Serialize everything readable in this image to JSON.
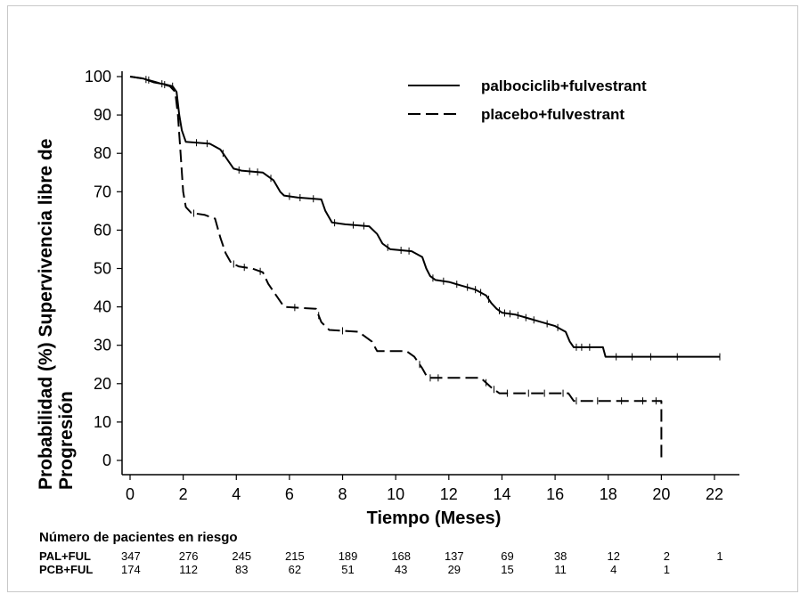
{
  "chart_data": {
    "type": "line",
    "ylabel_lines": [
      "Probabilidad (%) Supervivencia libre de",
      "Progresión"
    ],
    "xlabel": "Tiempo (Meses)",
    "xlim": [
      0,
      22
    ],
    "ylim": [
      0,
      100
    ],
    "x_ticks": [
      "0",
      "2",
      "4",
      "6",
      "8",
      "10",
      "12",
      "14",
      "16",
      "18",
      "20",
      "22"
    ],
    "y_ticks": [
      "0",
      "10",
      "20",
      "30",
      "40",
      "50",
      "60",
      "70",
      "80",
      "90",
      "100"
    ],
    "legend_position": "top-right",
    "series": [
      {
        "name": "palbociclib+fulvestrant",
        "style": "solid",
        "points": [
          [
            0,
            100
          ],
          [
            0.5,
            99.5
          ],
          [
            0.9,
            98.5
          ],
          [
            1.3,
            98
          ],
          [
            1.6,
            97.5
          ],
          [
            1.75,
            96
          ],
          [
            1.85,
            90
          ],
          [
            1.95,
            86
          ],
          [
            2.1,
            83
          ],
          [
            3.0,
            82.5
          ],
          [
            3.4,
            81
          ],
          [
            3.7,
            78
          ],
          [
            3.9,
            76
          ],
          [
            4.2,
            75.5
          ],
          [
            5.0,
            75
          ],
          [
            5.4,
            73
          ],
          [
            5.65,
            70
          ],
          [
            5.8,
            69
          ],
          [
            6.3,
            68.5
          ],
          [
            7.2,
            68
          ],
          [
            7.35,
            65
          ],
          [
            7.6,
            62
          ],
          [
            8.1,
            61.5
          ],
          [
            9.0,
            61
          ],
          [
            9.3,
            59
          ],
          [
            9.5,
            56.5
          ],
          [
            9.8,
            55
          ],
          [
            10.6,
            54.5
          ],
          [
            11.0,
            53
          ],
          [
            11.15,
            50
          ],
          [
            11.3,
            48
          ],
          [
            11.5,
            47
          ],
          [
            12.0,
            46.5
          ],
          [
            12.5,
            45.5
          ],
          [
            13.0,
            44.5
          ],
          [
            13.4,
            43
          ],
          [
            13.6,
            41
          ],
          [
            13.8,
            39.5
          ],
          [
            14.0,
            38.5
          ],
          [
            14.5,
            38
          ],
          [
            15.0,
            37
          ],
          [
            15.5,
            36
          ],
          [
            16.0,
            35
          ],
          [
            16.4,
            33.5
          ],
          [
            16.55,
            31
          ],
          [
            16.7,
            29.5
          ],
          [
            17.8,
            29.5
          ],
          [
            17.9,
            27
          ],
          [
            22.2,
            27
          ]
        ],
        "censor_x": [
          0.6,
          1.2,
          1.6,
          2.5,
          2.9,
          3.5,
          4.1,
          4.5,
          4.8,
          5.3,
          6.0,
          6.4,
          6.9,
          7.7,
          8.4,
          8.8,
          9.7,
          10.2,
          10.5,
          11.4,
          11.8,
          12.3,
          12.7,
          13.0,
          13.2,
          13.5,
          13.9,
          14.1,
          14.3,
          14.6,
          14.9,
          15.2,
          15.7,
          16.1,
          16.8,
          17.0,
          17.3,
          18.3,
          18.9,
          19.6,
          20.6,
          22.2
        ]
      },
      {
        "name": "placebo+fulvestrant",
        "style": "dashed",
        "points": [
          [
            0,
            100
          ],
          [
            0.5,
            99.5
          ],
          [
            1.0,
            98.5
          ],
          [
            1.5,
            97.5
          ],
          [
            1.7,
            96
          ],
          [
            1.8,
            90
          ],
          [
            1.9,
            80
          ],
          [
            2.0,
            70
          ],
          [
            2.1,
            66
          ],
          [
            2.3,
            64.5
          ],
          [
            2.8,
            64
          ],
          [
            3.2,
            63
          ],
          [
            3.4,
            58
          ],
          [
            3.6,
            54
          ],
          [
            3.8,
            51.5
          ],
          [
            4.1,
            50.5
          ],
          [
            4.6,
            50
          ],
          [
            5.0,
            49
          ],
          [
            5.2,
            46
          ],
          [
            5.5,
            43
          ],
          [
            5.8,
            40
          ],
          [
            7.0,
            39.5
          ],
          [
            7.2,
            36
          ],
          [
            7.5,
            34
          ],
          [
            8.6,
            33.5
          ],
          [
            9.1,
            31
          ],
          [
            9.3,
            28.5
          ],
          [
            10.4,
            28.5
          ],
          [
            10.7,
            27
          ],
          [
            11.0,
            24
          ],
          [
            11.2,
            21.5
          ],
          [
            13.2,
            21.5
          ],
          [
            13.6,
            19
          ],
          [
            13.9,
            17.5
          ],
          [
            16.5,
            17.5
          ],
          [
            16.7,
            15.5
          ],
          [
            20.0,
            15.5
          ],
          [
            20.0,
            0
          ]
        ],
        "censor_x": [
          0.7,
          1.3,
          2.4,
          3.9,
          4.3,
          4.9,
          6.2,
          7.1,
          8.0,
          10.9,
          11.3,
          11.6,
          13.4,
          13.7,
          14.2,
          15.0,
          15.6,
          16.3,
          16.8,
          17.6,
          18.5,
          19.3,
          19.8
        ]
      }
    ]
  },
  "risk_table": {
    "title": "Número de pacientes en riesgo",
    "rows": [
      {
        "label": "PAL+FUL",
        "values": [
          "347",
          "276",
          "245",
          "215",
          "189",
          "168",
          "137",
          "69",
          "38",
          "12",
          "2",
          "1"
        ]
      },
      {
        "label": "PCB+FUL",
        "values": [
          "174",
          "112",
          "83",
          "62",
          "51",
          "43",
          "29",
          "15",
          "11",
          "4",
          "1",
          ""
        ]
      }
    ]
  }
}
